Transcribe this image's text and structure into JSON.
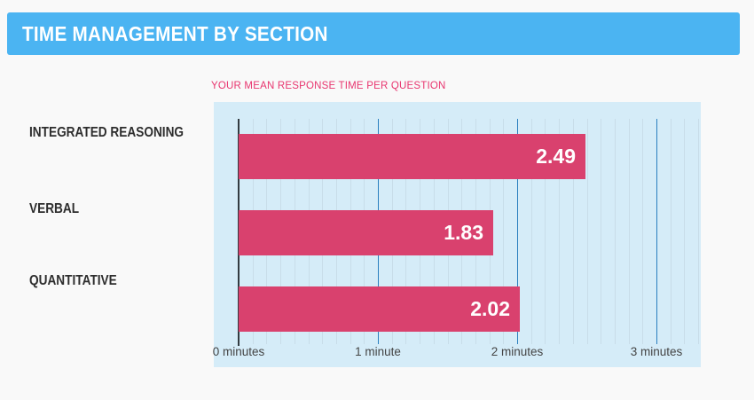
{
  "page": {
    "background": "#f9f9f9"
  },
  "header": {
    "title": "TIME MANAGEMENT BY SECTION",
    "background": "#4bb4f2",
    "text_color": "#ffffff"
  },
  "chart_data": {
    "type": "bar",
    "orientation": "horizontal",
    "title": "YOUR MEAN RESPONSE TIME PER QUESTION",
    "title_color": "#e8356f",
    "categories": [
      "INTEGRATED REASONING",
      "VERBAL",
      "QUANTITATIVE"
    ],
    "values": [
      2.49,
      1.83,
      2.02
    ],
    "value_labels": [
      "2.49",
      "1.83",
      "2.02"
    ],
    "unit": "minutes",
    "x_tick_labels": [
      "0 minutes",
      "1 minute",
      "2 minutes",
      "3 minutes"
    ],
    "x_tick_values": [
      0,
      1,
      2,
      3
    ],
    "xlim": [
      0,
      3.3
    ],
    "minor_grid_step": 0.1,
    "grid": "on",
    "legend": "none",
    "bar_color": "#d9416e",
    "bar_value_color": "#ffffff",
    "plot_background": "#d5ecf8",
    "major_grid_color": "#2a7fbf",
    "minor_grid_color": "#c8dde9",
    "axis_line_color": "#333b41",
    "tick_label_color": "#444444",
    "category_label_color": "#2d2d2d"
  }
}
